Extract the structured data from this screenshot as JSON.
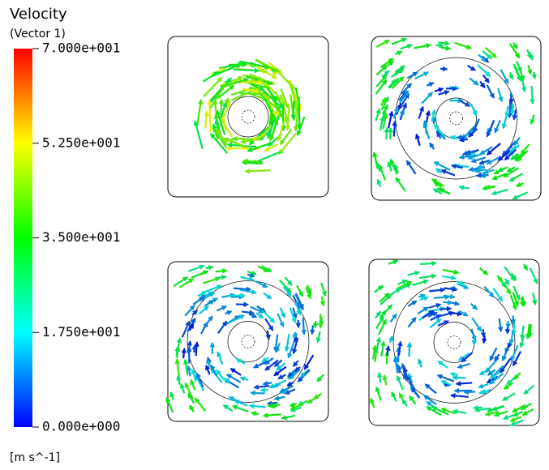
{
  "legend": {
    "title": "Velocity",
    "subtitle": "(Vector 1)",
    "ticks": [
      "7.000e+001",
      "5.250e+001",
      "3.500e+001",
      "1.750e+001",
      "0.000e+000"
    ],
    "unit": "[m s^-1]"
  }
}
